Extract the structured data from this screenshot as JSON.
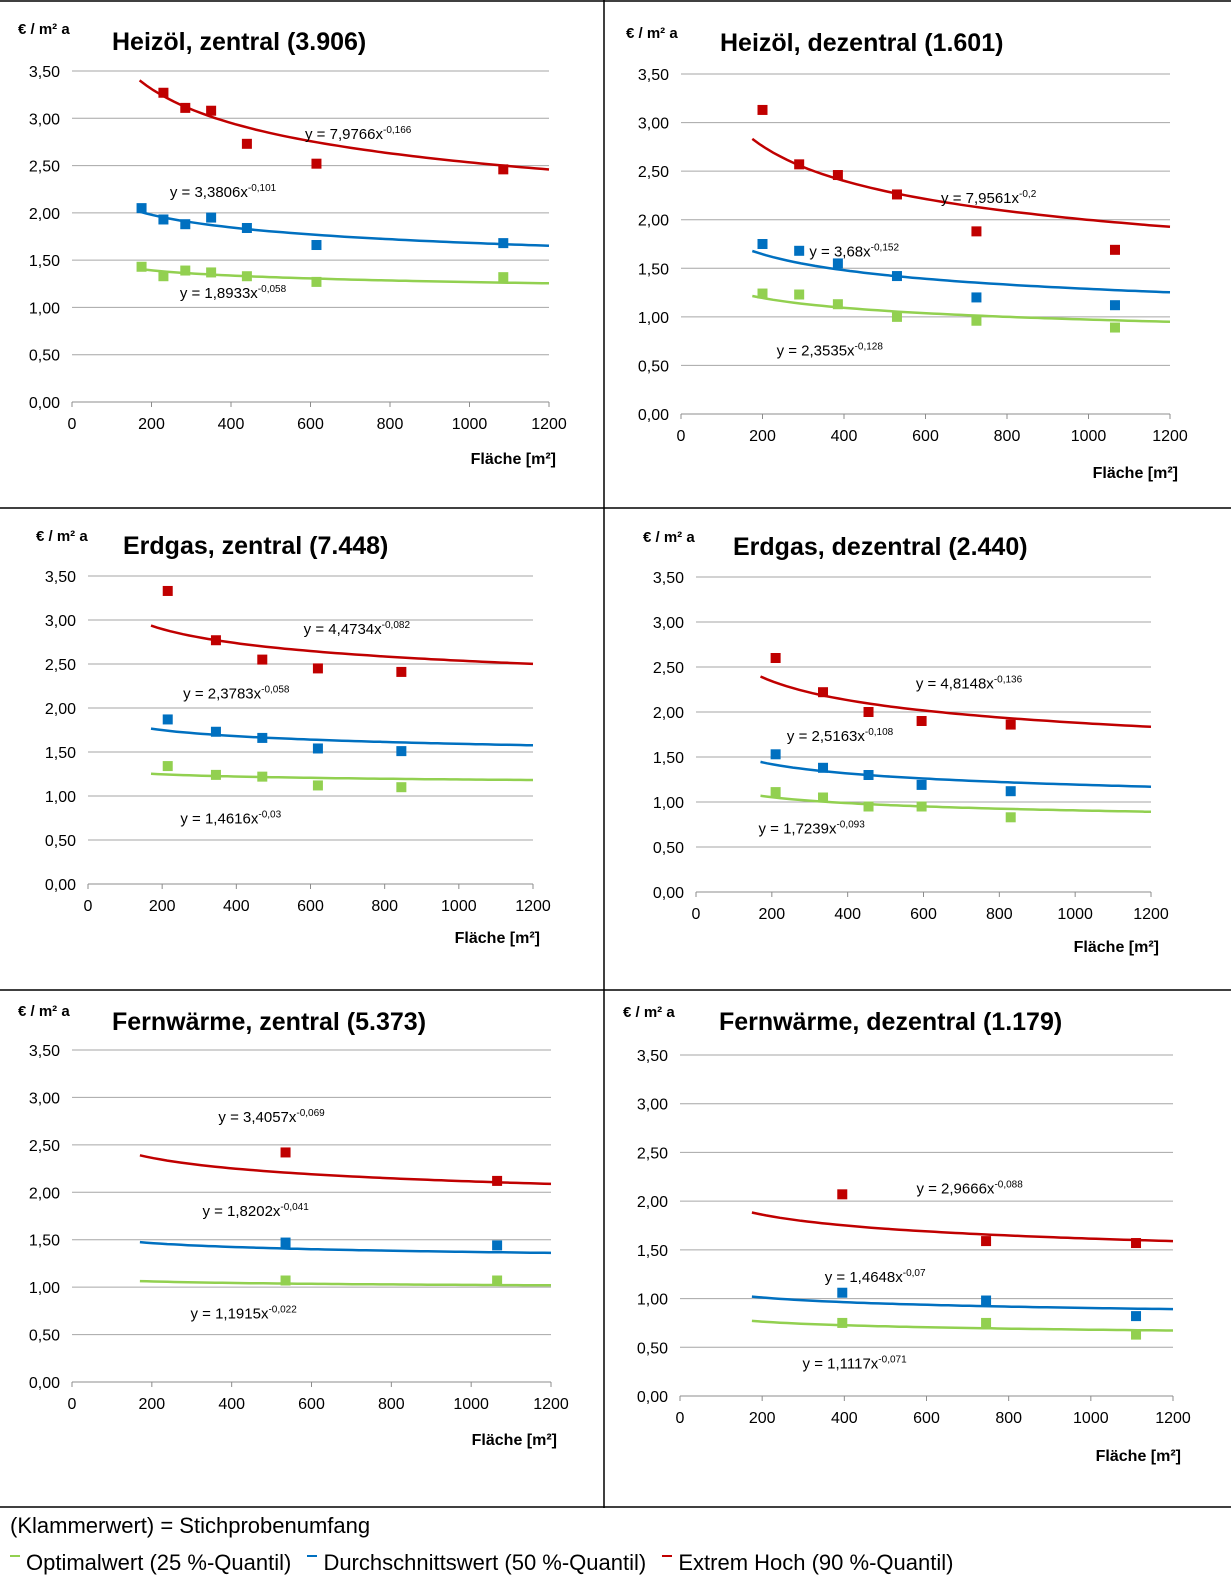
{
  "footer": {
    "note": "(Klammerwert) = Stichprobenumfang",
    "legend": [
      {
        "label": "Optimalwert (25 %-Quantil)",
        "color": "#92d050"
      },
      {
        "label": "Durchschnittswert (50 %-Quantil)",
        "color": "#0070c0"
      },
      {
        "label": "Extrem Hoch (90 %-Quantil)",
        "color": "#c00000"
      }
    ]
  },
  "chart_data": [
    {
      "type": "scatter",
      "title": "Heizöl,  zentral (3.906)",
      "ylabel": "€ / m² a",
      "xlabel": "Fläche [m²]",
      "xlim": [
        0,
        1200
      ],
      "ylim": [
        0,
        3.5
      ],
      "xticks": [
        "0",
        "200",
        "400",
        "600",
        "800",
        "1000",
        "1200"
      ],
      "yticks": [
        "0,00",
        "0,50",
        "1,00",
        "1,50",
        "2,00",
        "2,50",
        "3,00",
        "3,50"
      ],
      "series": [
        {
          "color": "#c00000",
          "x": [
            230,
            285,
            350,
            440,
            615,
            1085
          ],
          "y": [
            3.27,
            3.11,
            3.08,
            2.73,
            2.52,
            2.46
          ],
          "trend": {
            "a": 7.9766,
            "b": -0.166,
            "label": "y = 7,9766x",
            "exp": "-0,166",
            "x0": 170,
            "x1": 1200
          },
          "label_at": [
            720,
            2.78
          ]
        },
        {
          "color": "#0070c0",
          "x": [
            175,
            230,
            285,
            350,
            440,
            615,
            1085
          ],
          "y": [
            2.05,
            1.93,
            1.88,
            1.95,
            1.84,
            1.66,
            1.68
          ],
          "trend": {
            "a": 3.3806,
            "b": -0.101,
            "label": "y = 3,3806x",
            "exp": "-0,101",
            "x0": 170,
            "x1": 1200
          },
          "label_at": [
            380,
            2.17
          ]
        },
        {
          "color": "#92d050",
          "x": [
            175,
            230,
            285,
            350,
            440,
            615,
            1085
          ],
          "y": [
            1.43,
            1.33,
            1.39,
            1.37,
            1.33,
            1.27,
            1.32
          ],
          "trend": {
            "a": 1.8933,
            "b": -0.058,
            "label": "y = 1,8933x",
            "exp": "-0,058",
            "x0": 170,
            "x1": 1200
          },
          "label_at": [
            405,
            1.1
          ]
        }
      ]
    },
    {
      "type": "scatter",
      "title": "Heizöl,  dezentral (1.601)",
      "ylabel": "€ / m² a",
      "xlabel": "Fläche [m²]",
      "xlim": [
        0,
        1200
      ],
      "ylim": [
        0,
        3.5
      ],
      "xticks": [
        "0",
        "200",
        "400",
        "600",
        "800",
        "1000",
        "1200"
      ],
      "yticks": [
        "0,00",
        "0,50",
        "1,00",
        "1,50",
        "2,00",
        "2,50",
        "3,00",
        "3,50"
      ],
      "series": [
        {
          "color": "#c00000",
          "x": [
            200,
            290,
            385,
            530,
            725,
            1065
          ],
          "y": [
            3.13,
            2.57,
            2.46,
            2.26,
            1.88,
            1.69
          ],
          "trend": {
            "a": 7.9561,
            "b": -0.2,
            "label": "y = 7,9561x",
            "exp": "-0,2",
            "x0": 175,
            "x1": 1200
          },
          "label_at": [
            755,
            2.17
          ]
        },
        {
          "color": "#0070c0",
          "x": [
            200,
            290,
            385,
            530,
            725,
            1065
          ],
          "y": [
            1.75,
            1.68,
            1.55,
            1.42,
            1.2,
            1.12
          ],
          "trend": {
            "a": 3.68,
            "b": -0.152,
            "label": "y = 3,68x",
            "exp": "-0,152",
            "x0": 175,
            "x1": 1200
          },
          "label_at": [
            425,
            1.62
          ]
        },
        {
          "color": "#92d050",
          "x": [
            200,
            290,
            385,
            530,
            725,
            1065
          ],
          "y": [
            1.24,
            1.23,
            1.13,
            1.0,
            0.96,
            0.89
          ],
          "trend": {
            "a": 2.3535,
            "b": -0.128,
            "label": "y = 2,3535x",
            "exp": "-0,128",
            "x0": 175,
            "x1": 1200
          },
          "label_at": [
            365,
            0.6
          ]
        }
      ]
    },
    {
      "type": "scatter",
      "title": "Erdgas, zentral (7.448)",
      "ylabel": "€ / m² a",
      "xlabel": "Fläche [m²]",
      "xlim": [
        0,
        1200
      ],
      "ylim": [
        0,
        3.5
      ],
      "xticks": [
        "0",
        "200",
        "400",
        "600",
        "800",
        "1000",
        "1200"
      ],
      "yticks": [
        "0,00",
        "0,50",
        "1,00",
        "1,50",
        "2,00",
        "2,50",
        "3,00",
        "3,50"
      ],
      "series": [
        {
          "color": "#c00000",
          "x": [
            215,
            345,
            470,
            620,
            845
          ],
          "y": [
            3.33,
            2.77,
            2.55,
            2.45,
            2.41
          ],
          "trend": {
            "a": 4.4734,
            "b": -0.082,
            "label": "y = 4,4734x",
            "exp": "-0,082",
            "x0": 170,
            "x1": 1200
          },
          "label_at": [
            725,
            2.84
          ]
        },
        {
          "color": "#0070c0",
          "x": [
            215,
            345,
            470,
            620,
            845
          ],
          "y": [
            1.87,
            1.73,
            1.66,
            1.54,
            1.51
          ],
          "trend": {
            "a": 2.3783,
            "b": -0.058,
            "label": "y = 2,3783x",
            "exp": "-0,058",
            "x0": 170,
            "x1": 1200
          },
          "label_at": [
            400,
            2.11
          ]
        },
        {
          "color": "#92d050",
          "x": [
            215,
            345,
            470,
            620,
            845
          ],
          "y": [
            1.34,
            1.24,
            1.22,
            1.12,
            1.1
          ],
          "trend": {
            "a": 1.4616,
            "b": -0.03,
            "label": "y = 1,4616x",
            "exp": "-0,03",
            "x0": 170,
            "x1": 1200
          },
          "label_at": [
            385,
            0.69
          ]
        }
      ]
    },
    {
      "type": "scatter",
      "title": "Erdgas, dezentral (2.440)",
      "ylabel": "€ / m² a",
      "xlabel": "Fläche [m²]",
      "xlim": [
        0,
        1200
      ],
      "ylim": [
        0,
        3.5
      ],
      "xticks": [
        "0",
        "200",
        "400",
        "600",
        "800",
        "1000",
        "1200"
      ],
      "yticks": [
        "0,00",
        "0,50",
        "1,00",
        "1,50",
        "2,00",
        "2,50",
        "3,00",
        "3,50"
      ],
      "series": [
        {
          "color": "#c00000",
          "x": [
            210,
            335,
            455,
            595,
            830
          ],
          "y": [
            2.6,
            2.22,
            2.0,
            1.9,
            1.86
          ],
          "trend": {
            "a": 4.8148,
            "b": -0.136,
            "label": "y = 4,8148x",
            "exp": "-0,136",
            "x0": 170,
            "x1": 1200
          },
          "label_at": [
            720,
            2.26
          ]
        },
        {
          "color": "#0070c0",
          "x": [
            210,
            335,
            455,
            595,
            830
          ],
          "y": [
            1.53,
            1.38,
            1.3,
            1.19,
            1.12
          ],
          "trend": {
            "a": 2.5163,
            "b": -0.108,
            "label": "y = 2,5163x",
            "exp": "-0,108",
            "x0": 170,
            "x1": 1200
          },
          "label_at": [
            380,
            1.68
          ]
        },
        {
          "color": "#92d050",
          "x": [
            210,
            335,
            455,
            595,
            830
          ],
          "y": [
            1.11,
            1.05,
            0.95,
            0.95,
            0.83
          ],
          "trend": {
            "a": 1.7239,
            "b": -0.093,
            "label": "y = 1,7239x",
            "exp": "-0,093",
            "x0": 170,
            "x1": 1200
          },
          "label_at": [
            305,
            0.65
          ]
        }
      ]
    },
    {
      "type": "scatter",
      "title": "Fernwärme, zentral (5.373)",
      "ylabel": "€ / m² a",
      "xlabel": "Fläche [m²]",
      "xlim": [
        0,
        1200
      ],
      "ylim": [
        0,
        3.5
      ],
      "xticks": [
        "0",
        "200",
        "400",
        "600",
        "800",
        "1000",
        "1200"
      ],
      "yticks": [
        "0,00",
        "0,50",
        "1,00",
        "1,50",
        "2,00",
        "2,50",
        "3,00",
        "3,50"
      ],
      "series": [
        {
          "color": "#c00000",
          "x": [
            535,
            1065
          ],
          "y": [
            2.42,
            2.12
          ],
          "trend": {
            "a": 3.4057,
            "b": -0.069,
            "label": "y = 3,4057x",
            "exp": "-0,069",
            "x0": 170,
            "x1": 1200
          },
          "label_at": [
            500,
            2.74
          ]
        },
        {
          "color": "#0070c0",
          "x": [
            535,
            1065
          ],
          "y": [
            1.47,
            1.44
          ],
          "trend": {
            "a": 1.8202,
            "b": -0.041,
            "label": "y = 1,8202x",
            "exp": "-0,041",
            "x0": 170,
            "x1": 1200
          },
          "label_at": [
            460,
            1.75
          ]
        },
        {
          "color": "#92d050",
          "x": [
            535,
            1065
          ],
          "y": [
            1.07,
            1.07
          ],
          "trend": {
            "a": 1.1915,
            "b": -0.022,
            "label": "y = 1,1915x",
            "exp": "-0,022",
            "x0": 170,
            "x1": 1200
          },
          "label_at": [
            430,
            0.67
          ]
        }
      ]
    },
    {
      "type": "scatter",
      "title": "Fernwärme, dezentral (1.179)",
      "ylabel": "€ / m² a",
      "xlabel": "Fläche [m²]",
      "xlim": [
        0,
        1200
      ],
      "ylim": [
        0,
        3.5
      ],
      "xticks": [
        "0",
        "200",
        "400",
        "600",
        "800",
        "1000",
        "1200"
      ],
      "yticks": [
        "0,00",
        "0,50",
        "1,00",
        "1,50",
        "2,00",
        "2,50",
        "3,00",
        "3,50"
      ],
      "series": [
        {
          "color": "#c00000",
          "x": [
            395,
            745,
            1110
          ],
          "y": [
            2.07,
            1.59,
            1.57
          ],
          "trend": {
            "a": 2.9666,
            "b": -0.088,
            "label": "y = 2,9666x",
            "exp": "-0,088",
            "x0": 175,
            "x1": 1200
          },
          "label_at": [
            705,
            2.08
          ]
        },
        {
          "color": "#0070c0",
          "x": [
            395,
            745,
            1110
          ],
          "y": [
            1.06,
            0.98,
            0.82
          ],
          "trend": {
            "a": 1.4648,
            "b": -0.07,
            "label": "y = 1,4648x",
            "exp": "-0,07",
            "x0": 175,
            "x1": 1200
          },
          "label_at": [
            475,
            1.17
          ]
        },
        {
          "color": "#92d050",
          "x": [
            395,
            745,
            1110
          ],
          "y": [
            0.75,
            0.75,
            0.63
          ],
          "trend": {
            "a": 1.1117,
            "b": -0.071,
            "label": "y = 1,1117x",
            "exp": "-0,071",
            "x0": 175,
            "x1": 1200
          },
          "label_at": [
            425,
            0.28
          ]
        }
      ]
    }
  ]
}
